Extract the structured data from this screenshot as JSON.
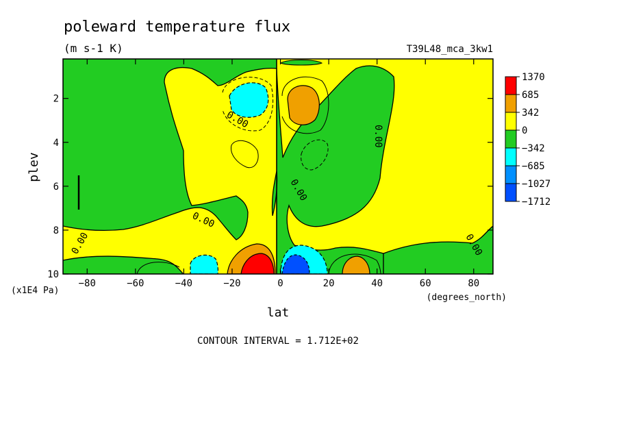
{
  "chart_data": {
    "type": "heatmap",
    "title": "poleward temperature flux",
    "subtitle": "(m s-1 K)",
    "run_label": "T39L48_mca_3kw1",
    "xlabel": "lat",
    "x_units": "(degrees_north)",
    "ylabel": "plev",
    "y_units": "(x1E4 Pa)",
    "footer": "CONTOUR INTERVAL = 1.712E+02",
    "xlim": [
      -90,
      88
    ],
    "ylim": [
      10,
      0.2
    ],
    "x_ticks": [
      -80,
      -60,
      -40,
      -20,
      0,
      20,
      40,
      60,
      80
    ],
    "y_ticks": [
      2,
      4,
      6,
      8,
      10
    ],
    "contour_labels": [
      "0.00",
      "0.00",
      "0.00",
      "0.00",
      "0.00",
      "0.00"
    ],
    "legend": {
      "labels": [
        "1370",
        "685",
        "342",
        "0",
        "-342",
        "-685",
        "-1027",
        "-1712"
      ],
      "colors": [
        "#ff0000",
        "#f0a000",
        "#ffff00",
        "#22cc22",
        "#00ffff",
        "#0090ff",
        "#0050ff"
      ]
    },
    "colors": {
      "positive_high": "#ff0000",
      "positive_mid": "#f0a000",
      "positive_low": "#ffff00",
      "negative_low": "#22cc22",
      "negative_mid": "#00ffff",
      "negative_high": "#0090ff",
      "negative_max": "#0050ff"
    }
  }
}
